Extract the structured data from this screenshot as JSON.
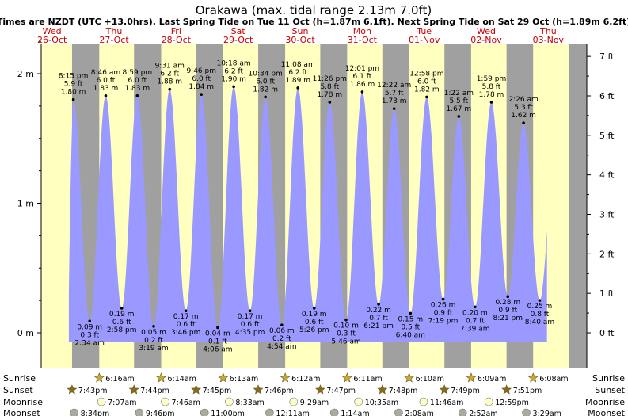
{
  "title": "Orakawa (max. tidal range 2.13m 7.0ft)",
  "subtitle": "Times are NZDT (UTC +13.0hrs). Last Spring Tide on Tue 11 Oct (h=1.87m 6.1ft). Next Spring Tide on Sat 29 Oct (h=1.89m 6.2ft)",
  "colors": {
    "day": "#ffffc0",
    "night": "#a0a0a0",
    "tide": "#9999ff",
    "day_label": "#cc0000",
    "sun": "#c8a832",
    "sunset": "#8a6a1c",
    "moonrise": "#ffffcc",
    "moonset": "#aaaaa0"
  },
  "days": [
    {
      "name": "Wed",
      "date": "26-Oct"
    },
    {
      "name": "Thu",
      "date": "27-Oct"
    },
    {
      "name": "Fri",
      "date": "28-Oct"
    },
    {
      "name": "Sat",
      "date": "29-Oct"
    },
    {
      "name": "Sun",
      "date": "30-Oct"
    },
    {
      "name": "Mon",
      "date": "31-Oct"
    },
    {
      "name": "Tue",
      "date": "01-Nov"
    },
    {
      "name": "Wed",
      "date": "02-Nov"
    },
    {
      "name": "Thu",
      "date": "03-Nov"
    }
  ],
  "row_labels": {
    "sunrise": "Sunrise",
    "sunset": "Sunset",
    "moonrise": "Moonrise",
    "moonset": "Moonset"
  },
  "chart_data": {
    "type": "area",
    "series_kind": "tide height",
    "x_unit": "hours from midnight 26-Oct (NZDT)",
    "xlim": [
      0,
      216
    ],
    "ylim": [
      -0.28,
      2.3
    ],
    "y_ticks_m": [
      {
        "v": 0,
        "label": "0 m"
      },
      {
        "v": 1,
        "label": "1 m"
      },
      {
        "v": 2,
        "label": "2 m"
      }
    ],
    "y_ticks_ft": [
      {
        "v": 0,
        "label": "0 ft"
      },
      {
        "v": 1,
        "label": "1 ft"
      },
      {
        "v": 2,
        "label": "2 ft"
      },
      {
        "v": 3,
        "label": "3 ft"
      },
      {
        "v": 4,
        "label": "4 ft"
      },
      {
        "v": 5,
        "label": "5 ft"
      },
      {
        "v": 6,
        "label": "6 ft"
      },
      {
        "v": 7,
        "label": "7 ft"
      }
    ],
    "extremes": [
      {
        "t": 20.25,
        "h": 1.8,
        "type": "high",
        "time": "8:15 pm",
        "ft": "5.9 ft",
        "m": "1.80 m"
      },
      {
        "t": 26.57,
        "h": 0.09,
        "type": "low",
        "time": "2:34 am",
        "ft": "0.3 ft",
        "m": "0.09 m"
      },
      {
        "t": 32.77,
        "h": 1.83,
        "type": "high",
        "time": "8:46 am",
        "ft": "6.0 ft",
        "m": "1.83 m"
      },
      {
        "t": 38.97,
        "h": 0.19,
        "type": "low",
        "time": "2:58 pm",
        "ft": "0.6 ft",
        "m": "0.19 m"
      },
      {
        "t": 44.98,
        "h": 1.83,
        "type": "high",
        "time": "8:59 pm",
        "ft": "6.0 ft",
        "m": "1.83 m"
      },
      {
        "t": 51.32,
        "h": 0.05,
        "type": "low",
        "time": "3:19 am",
        "ft": "0.2 ft",
        "m": "0.05 m"
      },
      {
        "t": 57.52,
        "h": 1.88,
        "type": "high",
        "time": "9:31 am",
        "ft": "6.2 ft",
        "m": "1.88 m"
      },
      {
        "t": 63.77,
        "h": 0.17,
        "type": "low",
        "time": "3:46 pm",
        "ft": "0.6 ft",
        "m": "0.17 m"
      },
      {
        "t": 69.77,
        "h": 1.84,
        "type": "high",
        "time": "9:46 pm",
        "ft": "6.0 ft",
        "m": "1.84 m"
      },
      {
        "t": 76.1,
        "h": 0.04,
        "type": "low",
        "time": "4:06 am",
        "ft": "0.1 ft",
        "m": "0.04 m"
      },
      {
        "t": 82.3,
        "h": 1.9,
        "type": "high",
        "time": "10:18 am",
        "ft": "6.2 ft",
        "m": "1.90 m"
      },
      {
        "t": 88.58,
        "h": 0.17,
        "type": "low",
        "time": "4:35 pm",
        "ft": "0.6 ft",
        "m": "0.17 m"
      },
      {
        "t": 94.57,
        "h": 1.82,
        "type": "high",
        "time": "10:34 pm",
        "ft": "6.0 ft",
        "m": "1.82 m"
      },
      {
        "t": 100.9,
        "h": 0.06,
        "type": "low",
        "time": "4:54 am",
        "ft": "0.2 ft",
        "m": "0.06 m"
      },
      {
        "t": 107.13,
        "h": 1.89,
        "type": "high",
        "time": "11:08 am",
        "ft": "6.2 ft",
        "m": "1.89 m"
      },
      {
        "t": 113.43,
        "h": 0.19,
        "type": "low",
        "time": "5:26 pm",
        "ft": "0.6 ft",
        "m": "0.19 m"
      },
      {
        "t": 119.43,
        "h": 1.78,
        "type": "high",
        "time": "11:26 pm",
        "ft": "5.8 ft",
        "m": "1.78 m"
      },
      {
        "t": 125.77,
        "h": 0.1,
        "type": "low",
        "time": "5:46 am",
        "ft": "0.3 ft",
        "m": "0.10 m"
      },
      {
        "t": 132.02,
        "h": 1.86,
        "type": "high",
        "time": "12:01 pm",
        "ft": "6.1 ft",
        "m": "1.86 m"
      },
      {
        "t": 138.35,
        "h": 0.22,
        "type": "low",
        "time": "6:21 pm",
        "ft": "0.7 ft",
        "m": "0.22 m"
      },
      {
        "t": 144.37,
        "h": 1.73,
        "type": "high",
        "time": "12:22 am",
        "ft": "5.7 ft",
        "m": "1.73 m"
      },
      {
        "t": 150.67,
        "h": 0.15,
        "type": "low",
        "time": "6:40 am",
        "ft": "0.5 ft",
        "m": "0.15 m"
      },
      {
        "t": 156.97,
        "h": 1.82,
        "type": "high",
        "time": "12:58 pm",
        "ft": "6.0 ft",
        "m": "1.82 m"
      },
      {
        "t": 163.32,
        "h": 0.26,
        "type": "low",
        "time": "7:19 pm",
        "ft": "0.9 ft",
        "m": "0.26 m"
      },
      {
        "t": 169.37,
        "h": 1.67,
        "type": "high",
        "time": "1:22 am",
        "ft": "5.5 ft",
        "m": "1.67 m"
      },
      {
        "t": 175.65,
        "h": 0.2,
        "type": "low",
        "time": "7:39 am",
        "ft": "0.7 ft",
        "m": "0.20 m"
      },
      {
        "t": 181.98,
        "h": 1.78,
        "type": "high",
        "time": "1:59 pm",
        "ft": "5.8 ft",
        "m": "1.78 m"
      },
      {
        "t": 188.35,
        "h": 0.28,
        "type": "low",
        "time": "8:21 pm",
        "ft": "0.9 ft",
        "m": "0.28 m"
      },
      {
        "t": 194.43,
        "h": 1.62,
        "type": "high",
        "time": "2:26 am",
        "ft": "5.3 ft",
        "m": "1.62 m"
      },
      {
        "t": 200.67,
        "h": 0.25,
        "type": "low",
        "time": "8:40 am",
        "ft": "0.8 ft",
        "m": "0.25 m"
      }
    ],
    "sunrise": [
      {
        "t": 30.27,
        "time": "6:16am"
      },
      {
        "t": 54.23,
        "time": "6:14am"
      },
      {
        "t": 78.22,
        "time": "6:13am"
      },
      {
        "t": 102.2,
        "time": "6:12am"
      },
      {
        "t": 126.18,
        "time": "6:11am"
      },
      {
        "t": 150.17,
        "time": "6:10am"
      },
      {
        "t": 174.15,
        "time": "6:09am"
      },
      {
        "t": 198.13,
        "time": "6:08am"
      }
    ],
    "sunset": [
      {
        "t": 19.72,
        "time": "7:43pm"
      },
      {
        "t": 43.73,
        "time": "7:44pm"
      },
      {
        "t": 67.75,
        "time": "7:45pm"
      },
      {
        "t": 91.77,
        "time": "7:46pm"
      },
      {
        "t": 115.78,
        "time": "7:47pm"
      },
      {
        "t": 139.8,
        "time": "7:48pm"
      },
      {
        "t": 163.82,
        "time": "7:49pm"
      },
      {
        "t": 187.85,
        "time": "7:51pm"
      }
    ],
    "moonrise": [
      {
        "t": 31.12,
        "time": "7:07am"
      },
      {
        "t": 55.77,
        "time": "7:46am"
      },
      {
        "t": 80.55,
        "time": "8:33am"
      },
      {
        "t": 105.48,
        "time": "9:29am"
      },
      {
        "t": 130.58,
        "time": "10:35am"
      },
      {
        "t": 155.77,
        "time": "11:46am"
      },
      {
        "t": 180.98,
        "time": "12:59pm"
      }
    ],
    "moonset": [
      {
        "t": 20.57,
        "time": "8:34pm"
      },
      {
        "t": 45.77,
        "time": "9:46pm"
      },
      {
        "t": 71.0,
        "time": "11:00pm"
      },
      {
        "t": 96.18,
        "time": "12:11am"
      },
      {
        "t": 121.23,
        "time": "1:14am"
      },
      {
        "t": 146.13,
        "time": "2:08am"
      },
      {
        "t": 170.87,
        "time": "2:52am"
      },
      {
        "t": 195.48,
        "time": "3:29am"
      }
    ]
  }
}
